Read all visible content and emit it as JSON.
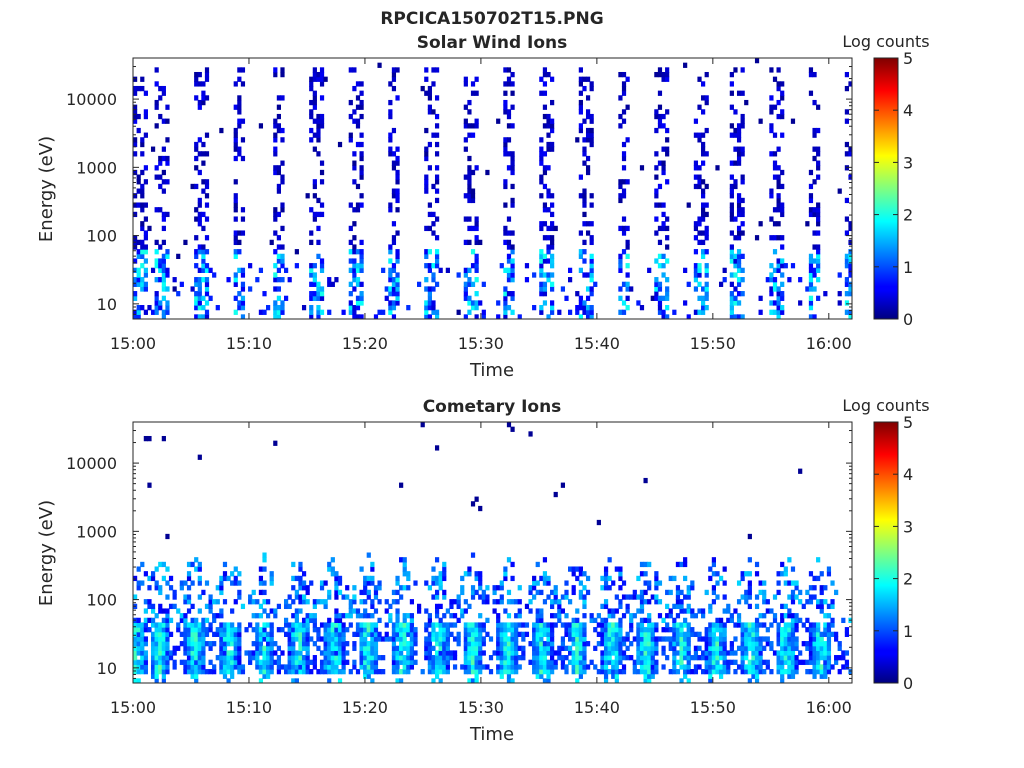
{
  "figure": {
    "title": "RPCICA150702T15.PNG"
  },
  "chart_data": [
    {
      "type": "heatmap",
      "title": "Solar Wind Ions",
      "xlabel": "Time",
      "ylabel": "Energy (eV)",
      "x_range": [
        "15:00",
        "16:02"
      ],
      "x_ticks": [
        "15:00",
        "15:10",
        "15:20",
        "15:30",
        "15:40",
        "15:50",
        "16:00"
      ],
      "y_scale": "log",
      "y_range": [
        6,
        40000
      ],
      "y_ticks": [
        "10",
        "100",
        "1000",
        "10000"
      ],
      "colorbar": {
        "label": "Log counts",
        "range": [
          0,
          5
        ],
        "ticks": [
          "0",
          "1",
          "2",
          "3",
          "4",
          "5"
        ],
        "colormap": "jet"
      },
      "pattern": {
        "kind": "solar_wind",
        "sweep_period_min": 3.3,
        "sweeps_start_min": [
          0.0,
          2.0,
          5.4,
          8.6,
          12.0,
          15.3,
          18.6,
          21.9,
          25.2,
          28.5,
          31.8,
          35.1,
          38.4,
          41.7,
          45.0,
          48.3,
          51.6,
          54.9,
          58.2,
          61.4
        ],
        "typical_log_counts": {
          "high_energy_band": 0.1,
          "low_energy_core": 1.2
        },
        "max_log_counts": 2.3
      }
    },
    {
      "type": "heatmap",
      "title": "Cometary Ions",
      "xlabel": "Time",
      "ylabel": "Energy (eV)",
      "x_range": [
        "15:00",
        "16:02"
      ],
      "x_ticks": [
        "15:00",
        "15:10",
        "15:20",
        "15:30",
        "15:40",
        "15:50",
        "16:00"
      ],
      "y_scale": "log",
      "y_range": [
        6,
        40000
      ],
      "y_ticks": [
        "10",
        "100",
        "1000",
        "10000"
      ],
      "colorbar": {
        "label": "Log counts",
        "range": [
          0,
          5
        ],
        "ticks": [
          "0",
          "1",
          "2",
          "3",
          "4",
          "5"
        ],
        "colormap": "jet"
      },
      "pattern": {
        "kind": "cometary",
        "peak_times_min": [
          0.3,
          2.3,
          5.3,
          8.3,
          11.3,
          14.3,
          17.3,
          20.3,
          23.3,
          26.3,
          29.3,
          32.3,
          35.3,
          38.3,
          41.3,
          44.3,
          47.3,
          50.3,
          53.3,
          56.3,
          59.3
        ],
        "core_energy_ev": [
          8,
          45
        ],
        "typical_log_counts": {
          "core": 2.0,
          "tail": 0.5
        },
        "max_log_counts": 3.0
      }
    }
  ]
}
